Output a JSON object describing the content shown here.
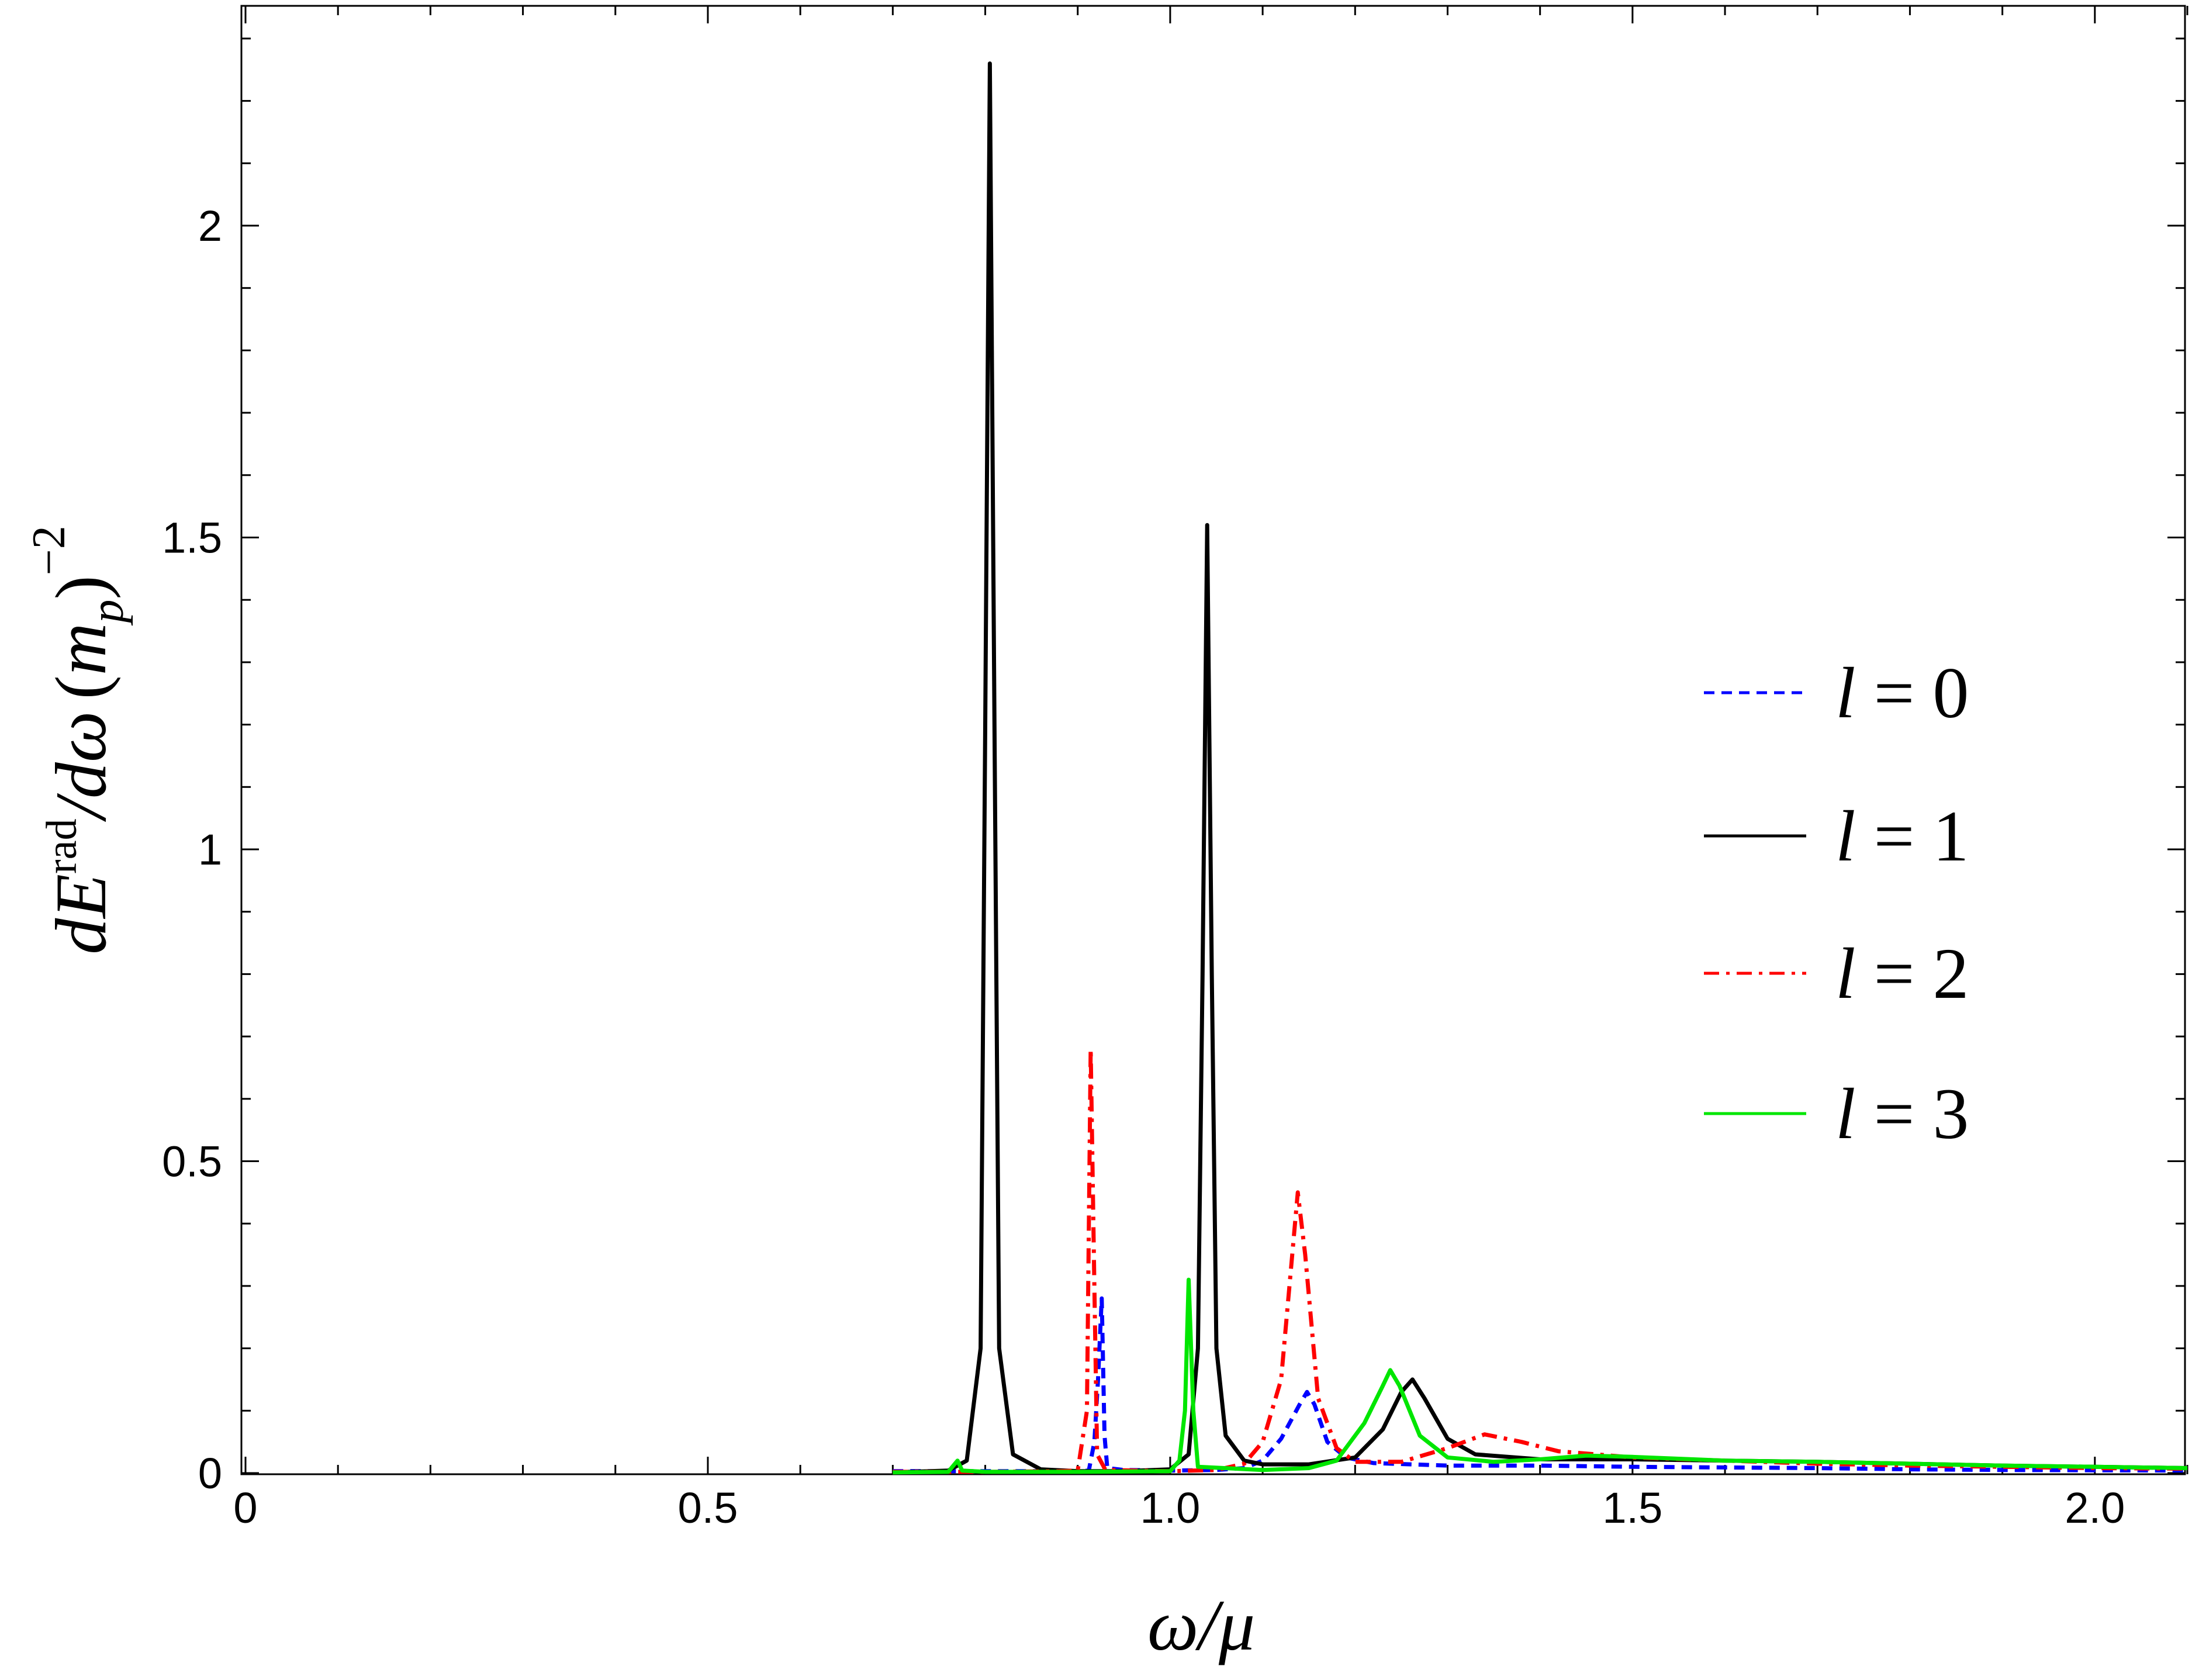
{
  "chart_data": {
    "type": "line",
    "xlim": [
      0,
      2.1
    ],
    "ylim": [
      0,
      2.3
    ],
    "xticks": [
      0,
      0.5,
      1.0,
      1.5,
      2.0
    ],
    "xtick_labels": [
      "0",
      "0.5",
      "1.0",
      "1.5",
      "2.0"
    ],
    "yticks": [
      0,
      0.5,
      1,
      1.5,
      2
    ],
    "ytick_labels": [
      "0",
      "0.5",
      "1",
      "1.5",
      "2"
    ],
    "xlabel": "ω/μ",
    "ylabel": "dE^rad/dω (m_p)^−2",
    "legend_position": "right",
    "grid": false,
    "series": [
      {
        "name": "l = 0",
        "color": "#0000ff",
        "dash": "dashed",
        "points": [
          [
            0.7,
            0.003
          ],
          [
            0.8,
            0.003
          ],
          [
            0.9,
            0.003
          ],
          [
            0.912,
            0.004
          ],
          [
            0.918,
            0.05
          ],
          [
            0.922,
            0.15
          ],
          [
            0.926,
            0.28
          ],
          [
            0.929,
            0.06
          ],
          [
            0.932,
            0.008
          ],
          [
            0.95,
            0.005
          ],
          [
            1.0,
            0.004
          ],
          [
            1.05,
            0.005
          ],
          [
            1.08,
            0.008
          ],
          [
            1.1,
            0.02
          ],
          [
            1.12,
            0.055
          ],
          [
            1.14,
            0.11
          ],
          [
            1.148,
            0.13
          ],
          [
            1.156,
            0.11
          ],
          [
            1.17,
            0.05
          ],
          [
            1.19,
            0.025
          ],
          [
            1.22,
            0.016
          ],
          [
            1.3,
            0.012
          ],
          [
            1.4,
            0.012
          ],
          [
            1.5,
            0.01
          ],
          [
            1.6,
            0.009
          ],
          [
            1.7,
            0.008
          ],
          [
            1.8,
            0.006
          ],
          [
            1.9,
            0.005
          ],
          [
            2.1,
            0.004
          ]
        ]
      },
      {
        "name": "l = 1",
        "color": "#000000",
        "dash": "solid",
        "points": [
          [
            0.7,
            0.001
          ],
          [
            0.76,
            0.004
          ],
          [
            0.78,
            0.02
          ],
          [
            0.795,
            0.2
          ],
          [
            0.8,
            1.2
          ],
          [
            0.805,
            2.26
          ],
          [
            0.81,
            1.2
          ],
          [
            0.815,
            0.2
          ],
          [
            0.83,
            0.03
          ],
          [
            0.86,
            0.006
          ],
          [
            0.9,
            0.003
          ],
          [
            0.95,
            0.003
          ],
          [
            1.0,
            0.006
          ],
          [
            1.02,
            0.03
          ],
          [
            1.03,
            0.2
          ],
          [
            1.035,
            0.8
          ],
          [
            1.04,
            1.52
          ],
          [
            1.045,
            0.8
          ],
          [
            1.05,
            0.2
          ],
          [
            1.06,
            0.06
          ],
          [
            1.08,
            0.02
          ],
          [
            1.1,
            0.014
          ],
          [
            1.15,
            0.014
          ],
          [
            1.2,
            0.025
          ],
          [
            1.23,
            0.07
          ],
          [
            1.25,
            0.13
          ],
          [
            1.262,
            0.15
          ],
          [
            1.275,
            0.12
          ],
          [
            1.3,
            0.055
          ],
          [
            1.33,
            0.03
          ],
          [
            1.4,
            0.022
          ],
          [
            1.5,
            0.022
          ],
          [
            1.6,
            0.02
          ],
          [
            1.7,
            0.018
          ],
          [
            1.8,
            0.015
          ],
          [
            1.9,
            0.012
          ],
          [
            2.0,
            0.01
          ],
          [
            2.1,
            0.008
          ]
        ]
      },
      {
        "name": "l = 2",
        "color": "#ff0000",
        "dash": "dashdot",
        "points": [
          [
            0.7,
            0.002
          ],
          [
            0.8,
            0.002
          ],
          [
            0.88,
            0.003
          ],
          [
            0.9,
            0.004
          ],
          [
            0.91,
            0.1
          ],
          [
            0.914,
            0.68
          ],
          [
            0.918,
            0.3
          ],
          [
            0.921,
            0.03
          ],
          [
            0.93,
            0.005
          ],
          [
            1.0,
            0.003
          ],
          [
            1.05,
            0.005
          ],
          [
            1.08,
            0.015
          ],
          [
            1.1,
            0.05
          ],
          [
            1.12,
            0.15
          ],
          [
            1.132,
            0.35
          ],
          [
            1.138,
            0.45
          ],
          [
            1.146,
            0.35
          ],
          [
            1.16,
            0.12
          ],
          [
            1.18,
            0.04
          ],
          [
            1.2,
            0.018
          ],
          [
            1.25,
            0.018
          ],
          [
            1.3,
            0.04
          ],
          [
            1.34,
            0.062
          ],
          [
            1.38,
            0.05
          ],
          [
            1.42,
            0.035
          ],
          [
            1.5,
            0.025
          ],
          [
            1.6,
            0.02
          ],
          [
            1.7,
            0.015
          ],
          [
            1.8,
            0.012
          ],
          [
            1.9,
            0.01
          ],
          [
            2.0,
            0.008
          ],
          [
            2.1,
            0.007
          ]
        ]
      },
      {
        "name": "l = 3",
        "color": "#00e600",
        "dash": "solid",
        "points": [
          [
            0.7,
            0.001
          ],
          [
            0.76,
            0.002
          ],
          [
            0.77,
            0.02
          ],
          [
            0.775,
            0.004
          ],
          [
            0.8,
            0.002
          ],
          [
            0.9,
            0.002
          ],
          [
            1.0,
            0.003
          ],
          [
            1.01,
            0.02
          ],
          [
            1.016,
            0.1
          ],
          [
            1.02,
            0.31
          ],
          [
            1.025,
            0.1
          ],
          [
            1.03,
            0.01
          ],
          [
            1.1,
            0.005
          ],
          [
            1.15,
            0.008
          ],
          [
            1.18,
            0.02
          ],
          [
            1.21,
            0.08
          ],
          [
            1.23,
            0.14
          ],
          [
            1.238,
            0.165
          ],
          [
            1.248,
            0.14
          ],
          [
            1.27,
            0.06
          ],
          [
            1.3,
            0.025
          ],
          [
            1.35,
            0.018
          ],
          [
            1.4,
            0.022
          ],
          [
            1.45,
            0.028
          ],
          [
            1.5,
            0.026
          ],
          [
            1.6,
            0.02
          ],
          [
            1.7,
            0.018
          ],
          [
            1.8,
            0.015
          ],
          [
            1.9,
            0.012
          ],
          [
            2.0,
            0.01
          ],
          [
            2.1,
            0.008
          ]
        ]
      }
    ]
  },
  "legend": {
    "items": [
      {
        "var": "l",
        "eq": " = 0"
      },
      {
        "var": "l",
        "eq": " = 1"
      },
      {
        "var": "l",
        "eq": " = 2"
      },
      {
        "var": "l",
        "eq": " = 3"
      }
    ]
  },
  "ylabel_parts": {
    "d": "d",
    "E": "E",
    "sup": "rad",
    "slash_domega": "/dω",
    "open": "(",
    "m": "m",
    "sub": "p",
    "close": ")",
    "exp": "−2"
  },
  "xlabel_text": "ω/μ"
}
